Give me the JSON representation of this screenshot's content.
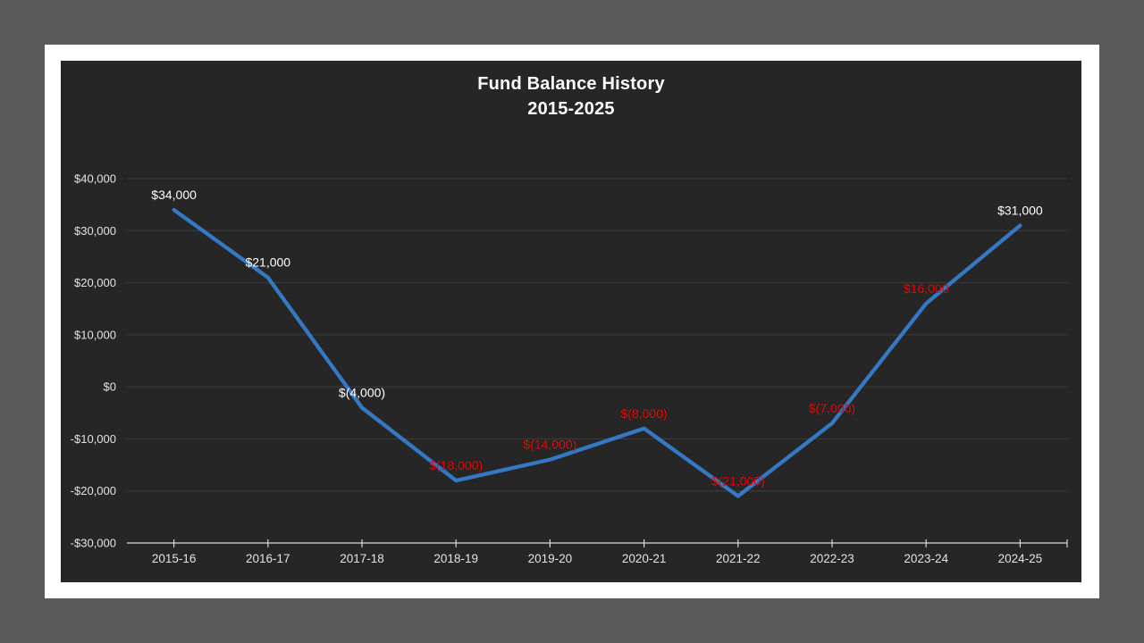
{
  "colors": {
    "page_background": "#595959",
    "slide_background": "#ffffff",
    "chart_background": "#262626",
    "gridline": "#3e3e3e",
    "axis": "#d6d6d6",
    "axis_text": "#e3e3e3",
    "title_text": "#ffffff",
    "line": "#3579c4",
    "label_white": "#ffffff",
    "label_red": "#e60000"
  },
  "chart_data": {
    "type": "line",
    "title": "Fund Balance History",
    "subtitle": "2015-2025",
    "categories": [
      "2015-16",
      "2016-17",
      "2017-18",
      "2018-19",
      "2019-20",
      "2020-21",
      "2021-22",
      "2022-23",
      "2023-24",
      "2024-25"
    ],
    "series": [
      {
        "values": [
          34000,
          21000,
          -4000,
          -18000,
          -14000,
          -8000,
          -21000,
          -7000,
          16000,
          31000
        ]
      }
    ],
    "data_labels": [
      {
        "text": "$34,000",
        "color": "white"
      },
      {
        "text": "$21,000",
        "color": "white"
      },
      {
        "text": "$(4,000)",
        "color": "white"
      },
      {
        "text": "$(18,000)",
        "color": "red"
      },
      {
        "text": "$(14,000)",
        "color": "red"
      },
      {
        "text": "$(8,000)",
        "color": "red"
      },
      {
        "text": "$(21,000)",
        "color": "red"
      },
      {
        "text": "$(7,000)",
        "color": "red"
      },
      {
        "text": "$16,000",
        "color": "red"
      },
      {
        "text": "$31,000",
        "color": "white"
      }
    ],
    "y_axis": {
      "ticks": [
        {
          "label": "$40,000",
          "value": 40000
        },
        {
          "label": "$30,000",
          "value": 30000
        },
        {
          "label": "$20,000",
          "value": 20000
        },
        {
          "label": "$10,000",
          "value": 10000
        },
        {
          "label": "$0",
          "value": 0
        },
        {
          "label": "-$10,000",
          "value": -10000
        },
        {
          "label": "-$20,000",
          "value": -20000
        },
        {
          "label": "-$30,000",
          "value": -30000
        }
      ]
    },
    "ylim": [
      -30000,
      40000
    ],
    "xlabel": "",
    "ylabel": "",
    "grid": true,
    "legend": "none"
  }
}
